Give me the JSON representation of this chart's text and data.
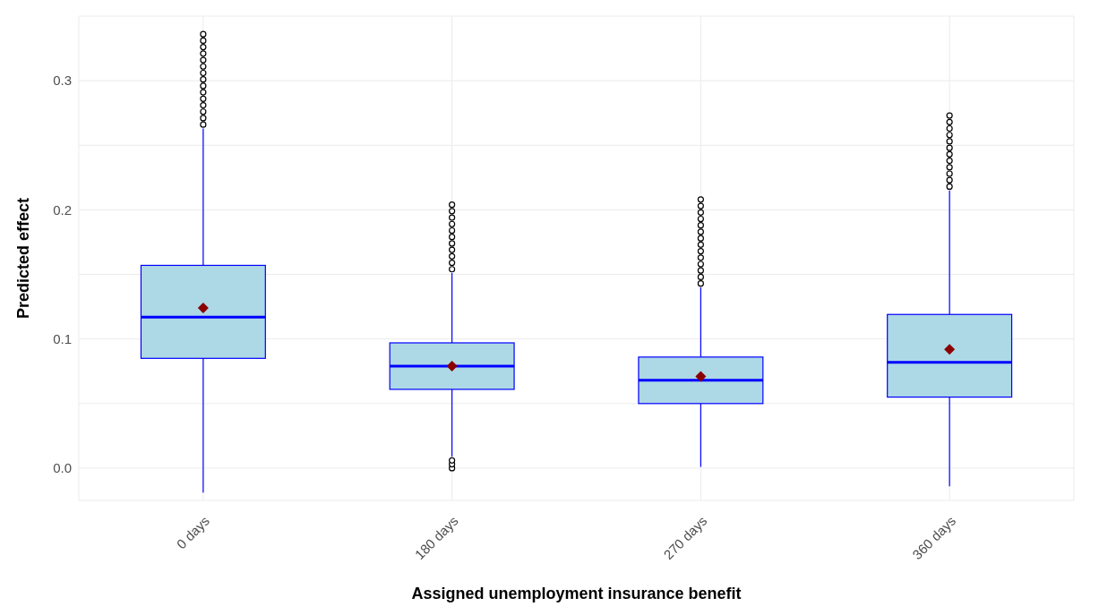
{
  "chart_data": {
    "type": "box",
    "xlabel": "Assigned unemployment insurance benefit",
    "ylabel": "Predicted effect",
    "categories": [
      "0 days",
      "180 days",
      "270 days",
      "360 days"
    ],
    "color": "#add8e6",
    "boxes": [
      {
        "low": -0.019,
        "q1": 0.085,
        "median": 0.117,
        "q3": 0.157,
        "high": 0.263,
        "mean": 0.124,
        "outliers": [
          0.266,
          0.271,
          0.276,
          0.281,
          0.286,
          0.291,
          0.296,
          0.301,
          0.306,
          0.311,
          0.316,
          0.321,
          0.326,
          0.331,
          0.336
        ]
      },
      {
        "low": 0.009,
        "q1": 0.061,
        "median": 0.079,
        "q3": 0.097,
        "high": 0.151,
        "mean": 0.079,
        "outliers": [
          0.0,
          0.003,
          0.006,
          0.154,
          0.159,
          0.164,
          0.169,
          0.174,
          0.179,
          0.184,
          0.189,
          0.194,
          0.199,
          0.204
        ]
      },
      {
        "low": 0.001,
        "q1": 0.05,
        "median": 0.068,
        "q3": 0.086,
        "high": 0.14,
        "mean": 0.071,
        "outliers": [
          0.143,
          0.148,
          0.153,
          0.158,
          0.163,
          0.168,
          0.173,
          0.178,
          0.183,
          0.188,
          0.193,
          0.198,
          0.203,
          0.208
        ]
      },
      {
        "low": -0.014,
        "q1": 0.055,
        "median": 0.082,
        "q3": 0.119,
        "high": 0.215,
        "mean": 0.092,
        "outliers": [
          0.218,
          0.223,
          0.228,
          0.233,
          0.238,
          0.243,
          0.248,
          0.253,
          0.258,
          0.263,
          0.268,
          0.273
        ]
      }
    ],
    "ylim": [
      -0.025,
      0.35
    ],
    "yticks": [
      {
        "value": 0.0,
        "label": "0.0"
      },
      {
        "value": 0.05,
        "label": null
      },
      0.1,
      {
        "value": 0.15,
        "label": null
      },
      0.2,
      {
        "value": 0.25,
        "label": null
      },
      0.3
    ],
    "grid": true,
    "marker": "diamond"
  }
}
